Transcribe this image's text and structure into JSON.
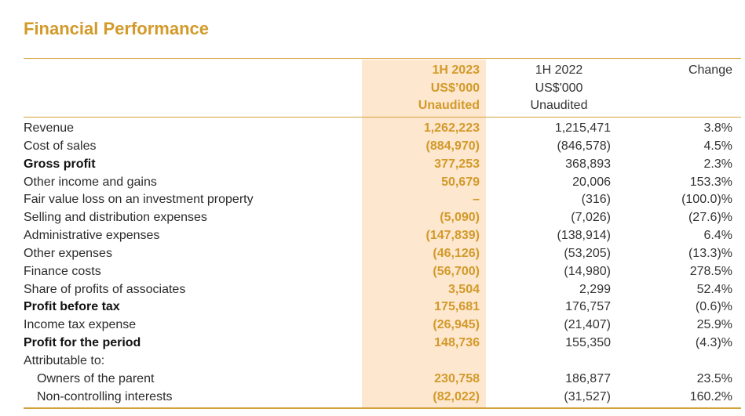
{
  "title": "Financial Performance",
  "columns": {
    "current": [
      "1H 2023",
      "US$’000",
      "Unaudited"
    ],
    "previous": [
      "1H 2022",
      "US$'000",
      "Unaudited"
    ],
    "change": "Change"
  },
  "rows": [
    {
      "label": "Revenue",
      "current": "1,262,223",
      "previous": "1,215,471",
      "change": "3.8%"
    },
    {
      "label": "Cost of sales",
      "current": "(884,970)",
      "previous": "(846,578)",
      "change": "4.5%"
    },
    {
      "label": "Gross profit",
      "current": "377,253",
      "previous": "368,893",
      "change": "2.3%"
    },
    {
      "label": "Other income and gains",
      "current": "50,679",
      "previous": "20,006",
      "change": "153.3%"
    },
    {
      "label": "Fair value loss on an investment property",
      "current": "–",
      "previous": "(316)",
      "change": "(100.0)%"
    },
    {
      "label": "Selling and distribution expenses",
      "current": "(5,090)",
      "previous": "(7,026)",
      "change": "(27.6)%"
    },
    {
      "label": "Administrative expenses",
      "current": "(147,839)",
      "previous": "(138,914)",
      "change": "6.4%"
    },
    {
      "label": "Other expenses",
      "current": "(46,126)",
      "previous": "(53,205)",
      "change": "(13.3)%"
    },
    {
      "label": "Finance costs",
      "current": "(56,700)",
      "previous": "(14,980)",
      "change": "278.5%"
    },
    {
      "label": "Share of profits of associates",
      "current": "3,504",
      "previous": "2,299",
      "change": "52.4%"
    },
    {
      "label": "Profit before tax",
      "current": "175,681",
      "previous": "176,757",
      "change": "(0.6)%"
    },
    {
      "label": "Income tax expense",
      "current": "(26,945)",
      "previous": "(21,407)",
      "change": "25.9%"
    },
    {
      "label": "Profit for the period",
      "current": "148,736",
      "previous": "155,350",
      "change": "(4.3)%"
    },
    {
      "label": "Attributable to:",
      "current": "",
      "previous": "",
      "change": ""
    },
    {
      "label": "Owners of the parent",
      "current": "230,758",
      "previous": "186,877",
      "change": "23.5%"
    },
    {
      "label": "Non-controlling interests",
      "current": "(82,022)",
      "previous": "(31,527)",
      "change": "160.2%"
    }
  ],
  "colors": {
    "accent": "#d39a2a",
    "highlight": "#fde7cf",
    "rule": "#d4a23c"
  }
}
